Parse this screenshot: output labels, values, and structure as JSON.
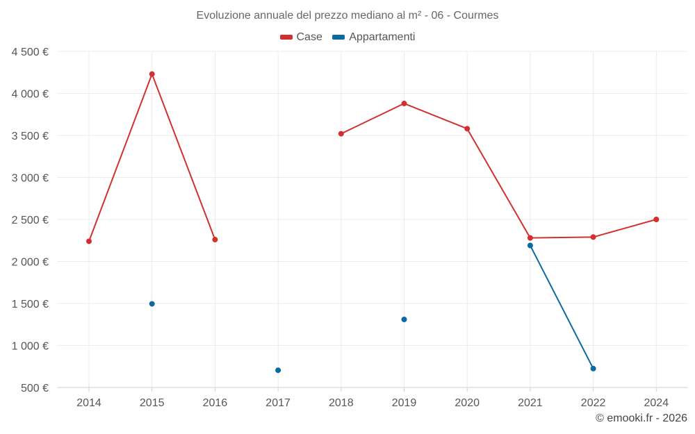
{
  "chart_data": {
    "type": "line",
    "title": "Evoluzione annuale del prezzo mediano al m² - 06 - Courmes",
    "categories": [
      "2014",
      "2015",
      "2016",
      "2017",
      "2018",
      "2019",
      "2020",
      "2021",
      "2022",
      "2024"
    ],
    "ylim": [
      500,
      4500
    ],
    "yticks": [
      500,
      1000,
      1500,
      2000,
      2500,
      3000,
      3500,
      4000,
      4500
    ],
    "ytick_labels": [
      "500 €",
      "1 000 €",
      "1 500 €",
      "2 000 €",
      "2 500 €",
      "3 000 €",
      "3 500 €",
      "4 000 €",
      "4 500 €"
    ],
    "xlabel": "",
    "ylabel": "",
    "grid": true,
    "legend_position": "top-center",
    "series": [
      {
        "name": "Case",
        "color": "#d32f2f",
        "values": [
          2240,
          4230,
          2260,
          null,
          3520,
          3880,
          3580,
          2280,
          2290,
          2500
        ]
      },
      {
        "name": "Appartamenti",
        "color": "#0a6aa1",
        "values": [
          null,
          1495,
          null,
          705,
          null,
          1310,
          null,
          2190,
          725,
          null
        ]
      }
    ]
  },
  "credit": "© emooki.fr - 2026"
}
